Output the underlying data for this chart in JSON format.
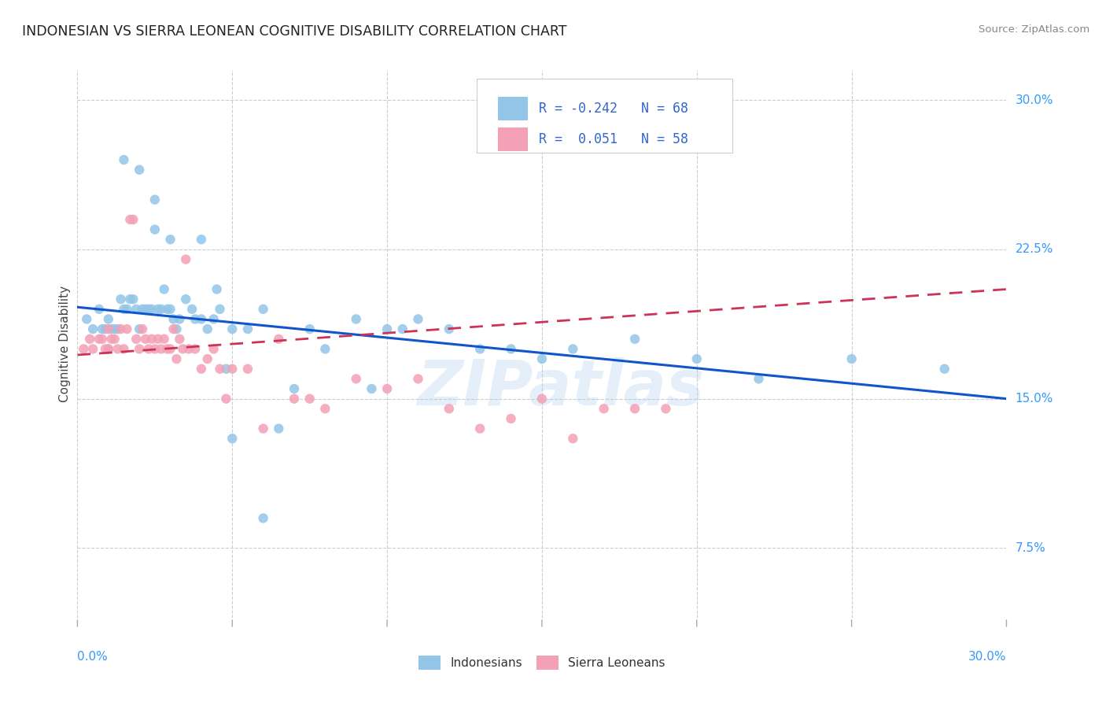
{
  "title": "INDONESIAN VS SIERRA LEONEAN COGNITIVE DISABILITY CORRELATION CHART",
  "source": "Source: ZipAtlas.com",
  "ylabel": "Cognitive Disability",
  "ytick_labels": [
    "7.5%",
    "15.0%",
    "22.5%",
    "30.0%"
  ],
  "ytick_values": [
    0.075,
    0.15,
    0.225,
    0.3
  ],
  "xtick_labels": [
    "0.0%",
    "30.0%"
  ],
  "xlim": [
    0.0,
    0.3
  ],
  "ylim": [
    0.04,
    0.315
  ],
  "R_indonesian": -0.242,
  "N_indonesian": 68,
  "R_sierraleone": 0.051,
  "N_sierraleone": 58,
  "color_indonesian": "#92C5E8",
  "color_sierraleone": "#F4A0B5",
  "trendline_indonesian_color": "#1155CC",
  "trendline_sierraleone_color": "#CC3355",
  "background_color": "#ffffff",
  "grid_color": "#cccccc",
  "watermark": "ZIPatlas",
  "indonesian_x": [
    0.003,
    0.005,
    0.007,
    0.008,
    0.009,
    0.01,
    0.01,
    0.011,
    0.012,
    0.013,
    0.014,
    0.015,
    0.016,
    0.017,
    0.018,
    0.019,
    0.02,
    0.021,
    0.022,
    0.023,
    0.024,
    0.025,
    0.026,
    0.027,
    0.028,
    0.029,
    0.03,
    0.031,
    0.032,
    0.033,
    0.035,
    0.037,
    0.038,
    0.04,
    0.042,
    0.044,
    0.046,
    0.048,
    0.05,
    0.055,
    0.06,
    0.065,
    0.07,
    0.075,
    0.08,
    0.09,
    0.095,
    0.1,
    0.105,
    0.11,
    0.12,
    0.13,
    0.14,
    0.15,
    0.16,
    0.18,
    0.2,
    0.22,
    0.25,
    0.28,
    0.015,
    0.02,
    0.025,
    0.03,
    0.04,
    0.045,
    0.05,
    0.06
  ],
  "indonesian_y": [
    0.19,
    0.185,
    0.195,
    0.185,
    0.185,
    0.175,
    0.19,
    0.185,
    0.185,
    0.185,
    0.2,
    0.195,
    0.195,
    0.2,
    0.2,
    0.195,
    0.185,
    0.195,
    0.195,
    0.195,
    0.195,
    0.25,
    0.195,
    0.195,
    0.205,
    0.195,
    0.195,
    0.19,
    0.185,
    0.19,
    0.2,
    0.195,
    0.19,
    0.19,
    0.185,
    0.19,
    0.195,
    0.165,
    0.185,
    0.185,
    0.195,
    0.135,
    0.155,
    0.185,
    0.175,
    0.19,
    0.155,
    0.185,
    0.185,
    0.19,
    0.185,
    0.175,
    0.175,
    0.17,
    0.175,
    0.18,
    0.17,
    0.16,
    0.17,
    0.165,
    0.27,
    0.265,
    0.235,
    0.23,
    0.23,
    0.205,
    0.13,
    0.09
  ],
  "sierraleone_x": [
    0.002,
    0.004,
    0.005,
    0.007,
    0.008,
    0.009,
    0.01,
    0.01,
    0.011,
    0.012,
    0.013,
    0.014,
    0.015,
    0.016,
    0.017,
    0.018,
    0.019,
    0.02,
    0.021,
    0.022,
    0.023,
    0.024,
    0.025,
    0.026,
    0.027,
    0.028,
    0.029,
    0.03,
    0.031,
    0.032,
    0.033,
    0.034,
    0.035,
    0.036,
    0.038,
    0.04,
    0.042,
    0.044,
    0.046,
    0.048,
    0.05,
    0.055,
    0.06,
    0.065,
    0.07,
    0.075,
    0.08,
    0.09,
    0.1,
    0.11,
    0.12,
    0.13,
    0.14,
    0.15,
    0.16,
    0.17,
    0.18,
    0.19
  ],
  "sierraleone_y": [
    0.175,
    0.18,
    0.175,
    0.18,
    0.18,
    0.175,
    0.175,
    0.185,
    0.18,
    0.18,
    0.175,
    0.185,
    0.175,
    0.185,
    0.24,
    0.24,
    0.18,
    0.175,
    0.185,
    0.18,
    0.175,
    0.18,
    0.175,
    0.18,
    0.175,
    0.18,
    0.175,
    0.175,
    0.185,
    0.17,
    0.18,
    0.175,
    0.22,
    0.175,
    0.175,
    0.165,
    0.17,
    0.175,
    0.165,
    0.15,
    0.165,
    0.165,
    0.135,
    0.18,
    0.15,
    0.15,
    0.145,
    0.16,
    0.155,
    0.16,
    0.145,
    0.135,
    0.14,
    0.15,
    0.13,
    0.145,
    0.145,
    0.145
  ]
}
